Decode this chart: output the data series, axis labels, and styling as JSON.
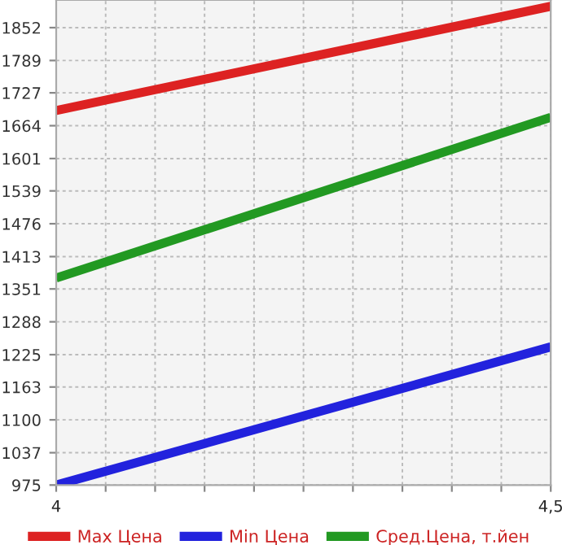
{
  "chart_data": {
    "type": "line",
    "x": [
      4,
      4.5
    ],
    "series": [
      {
        "name": "Max Цена",
        "color": "#dd2222",
        "values": [
          1693,
          1893
        ]
      },
      {
        "name": "Min Цена",
        "color": "#2222dd",
        "values": [
          975,
          1240
        ]
      },
      {
        "name": "Сред.Цена, т.йен",
        "color": "#229922",
        "values": [
          1372,
          1680
        ]
      }
    ],
    "xlim": [
      4,
      4.5
    ],
    "xticks": [
      4,
      {
        "value": 4.05,
        "label": null
      },
      {
        "value": 4.1,
        "label": null
      },
      {
        "value": 4.15,
        "label": null
      },
      {
        "value": 4.2,
        "label": null
      },
      {
        "value": 4.25,
        "label": null
      },
      {
        "value": 4.3,
        "label": null
      },
      {
        "value": 4.35,
        "label": null
      },
      {
        "value": 4.4,
        "label": null
      },
      {
        "value": 4.45,
        "label": null
      },
      {
        "value": 4.5,
        "label": "4,5"
      }
    ],
    "ylim": [
      975,
      1905
    ],
    "yticks": [
      975,
      1037,
      1100,
      1163,
      1225,
      1288,
      1351,
      1413,
      1476,
      1539,
      1601,
      1664,
      1727,
      1789,
      1852
    ],
    "grid": true,
    "legend": "bottom",
    "marker": "none",
    "line_style": "solid"
  }
}
